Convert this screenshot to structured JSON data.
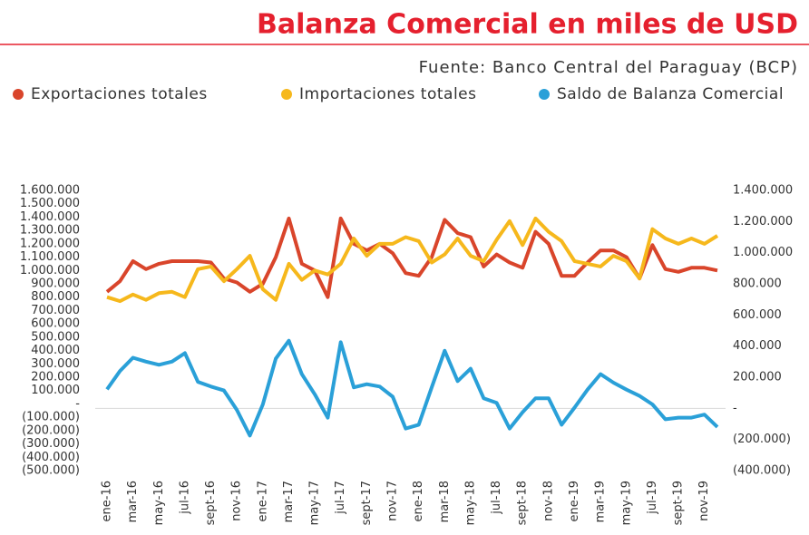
{
  "chart_data": {
    "type": "line",
    "title": "Balanza Comercial en miles de USD",
    "subtitle": "Fuente: Banco Central del Paraguay (BCP)",
    "categories": [
      "ene-16",
      null,
      "mar-16",
      null,
      "may-16",
      null,
      "jul-16",
      null,
      "sept-16",
      null,
      "nov-16",
      null,
      "ene-17",
      null,
      "mar-17",
      null,
      "may-17",
      null,
      "jul-17",
      null,
      "sept-17",
      null,
      "nov-17",
      null,
      "ene-18",
      null,
      "mar-18",
      null,
      "may-18",
      null,
      "jul-18",
      null,
      "sept-18",
      null,
      "nov-18",
      null,
      "ene-19",
      null,
      "mar-19",
      null,
      "may-19",
      null,
      "jul-19",
      null,
      "sept-19",
      null,
      "nov-19",
      null
    ],
    "series": [
      {
        "name": "Exportaciones totales",
        "color": "#d9452b",
        "values": [
          840000,
          920000,
          1070000,
          1010000,
          1050000,
          1070000,
          1070000,
          1070000,
          1060000,
          940000,
          910000,
          840000,
          900000,
          1100000,
          1390000,
          1050000,
          1000000,
          800000,
          1390000,
          1200000,
          1150000,
          1200000,
          1130000,
          980000,
          960000,
          1100000,
          1380000,
          1280000,
          1250000,
          1030000,
          1120000,
          1060000,
          1020000,
          1290000,
          1200000,
          960000,
          960000,
          1060000,
          1150000,
          1150000,
          1100000,
          940000,
          1190000,
          1010000,
          990000,
          1020000,
          1020000,
          1000000
        ]
      },
      {
        "name": "Importaciones totales",
        "color": "#f6b81c",
        "values": [
          800000,
          770000,
          820000,
          780000,
          830000,
          840000,
          800000,
          1010000,
          1030000,
          920000,
          1010000,
          1110000,
          860000,
          780000,
          1050000,
          930000,
          1000000,
          970000,
          1050000,
          1240000,
          1110000,
          1200000,
          1200000,
          1250000,
          1220000,
          1060000,
          1120000,
          1240000,
          1110000,
          1070000,
          1230000,
          1370000,
          1190000,
          1390000,
          1290000,
          1220000,
          1070000,
          1050000,
          1030000,
          1110000,
          1070000,
          940000,
          1310000,
          1240000,
          1200000,
          1240000,
          1200000,
          1260000
        ]
      },
      {
        "name": "Saldo de Balanza Comercial",
        "color": "#2aa0d8",
        "axis": "y2",
        "values": [
          122000,
          240000,
          325000,
          300000,
          280000,
          300000,
          355000,
          170000,
          140000,
          115000,
          -10000,
          -175000,
          25000,
          320000,
          435000,
          220000,
          90000,
          -60000,
          425000,
          135000,
          155000,
          140000,
          75000,
          -130000,
          -105000,
          135000,
          370000,
          175000,
          255000,
          65000,
          35000,
          -130000,
          -25000,
          65000,
          65000,
          -105000,
          5000,
          120000,
          220000,
          165000,
          120000,
          80000,
          25000,
          -70000,
          -60000,
          -60000,
          -40000,
          -120000
        ]
      }
    ],
    "ylim": [
      -500000,
      1600000
    ],
    "yticks": [
      {
        "value": -500000,
        "label": "(500.000)"
      },
      {
        "value": -400000,
        "label": "(400.000)"
      },
      {
        "value": -300000,
        "label": "(300.000)"
      },
      {
        "value": -200000,
        "label": "(200.000)"
      },
      {
        "value": -100000,
        "label": "(100.000)"
      },
      {
        "value": 0,
        "label": "-"
      },
      {
        "value": 100000,
        "label": "100.000"
      },
      {
        "value": 200000,
        "label": "200.000"
      },
      {
        "value": 300000,
        "label": "300.000"
      },
      {
        "value": 400000,
        "label": "400.000"
      },
      {
        "value": 500000,
        "label": "500.000"
      },
      {
        "value": 600000,
        "label": "600.000"
      },
      {
        "value": 700000,
        "label": "700.000"
      },
      {
        "value": 800000,
        "label": "800.000"
      },
      {
        "value": 900000,
        "label": "900.000"
      },
      {
        "value": 1000000,
        "label": "1.000.000"
      },
      {
        "value": 1100000,
        "label": "1.100.000"
      },
      {
        "value": 1200000,
        "label": "1.200.000"
      },
      {
        "value": 1300000,
        "label": "1.300.000"
      },
      {
        "value": 1400000,
        "label": "1.400.000"
      },
      {
        "value": 1500000,
        "label": "1.500.000"
      },
      {
        "value": 1600000,
        "label": "1.600.000"
      }
    ],
    "y2lim": [
      -400000,
      1400000
    ],
    "y2ticks": [
      {
        "value": -400000,
        "label": "(400.000)"
      },
      {
        "value": -200000,
        "label": "(200.000)"
      },
      {
        "value": 0,
        "label": "-"
      },
      {
        "value": 200000,
        "label": "200.000"
      },
      {
        "value": 400000,
        "label": "400.000"
      },
      {
        "value": 600000,
        "label": "600.000"
      },
      {
        "value": 800000,
        "label": "800.000"
      },
      {
        "value": 1000000,
        "label": "1.000.000"
      },
      {
        "value": 1200000,
        "label": "1.200.000"
      },
      {
        "value": 1400000,
        "label": "1.400.000"
      }
    ],
    "grid": false
  }
}
